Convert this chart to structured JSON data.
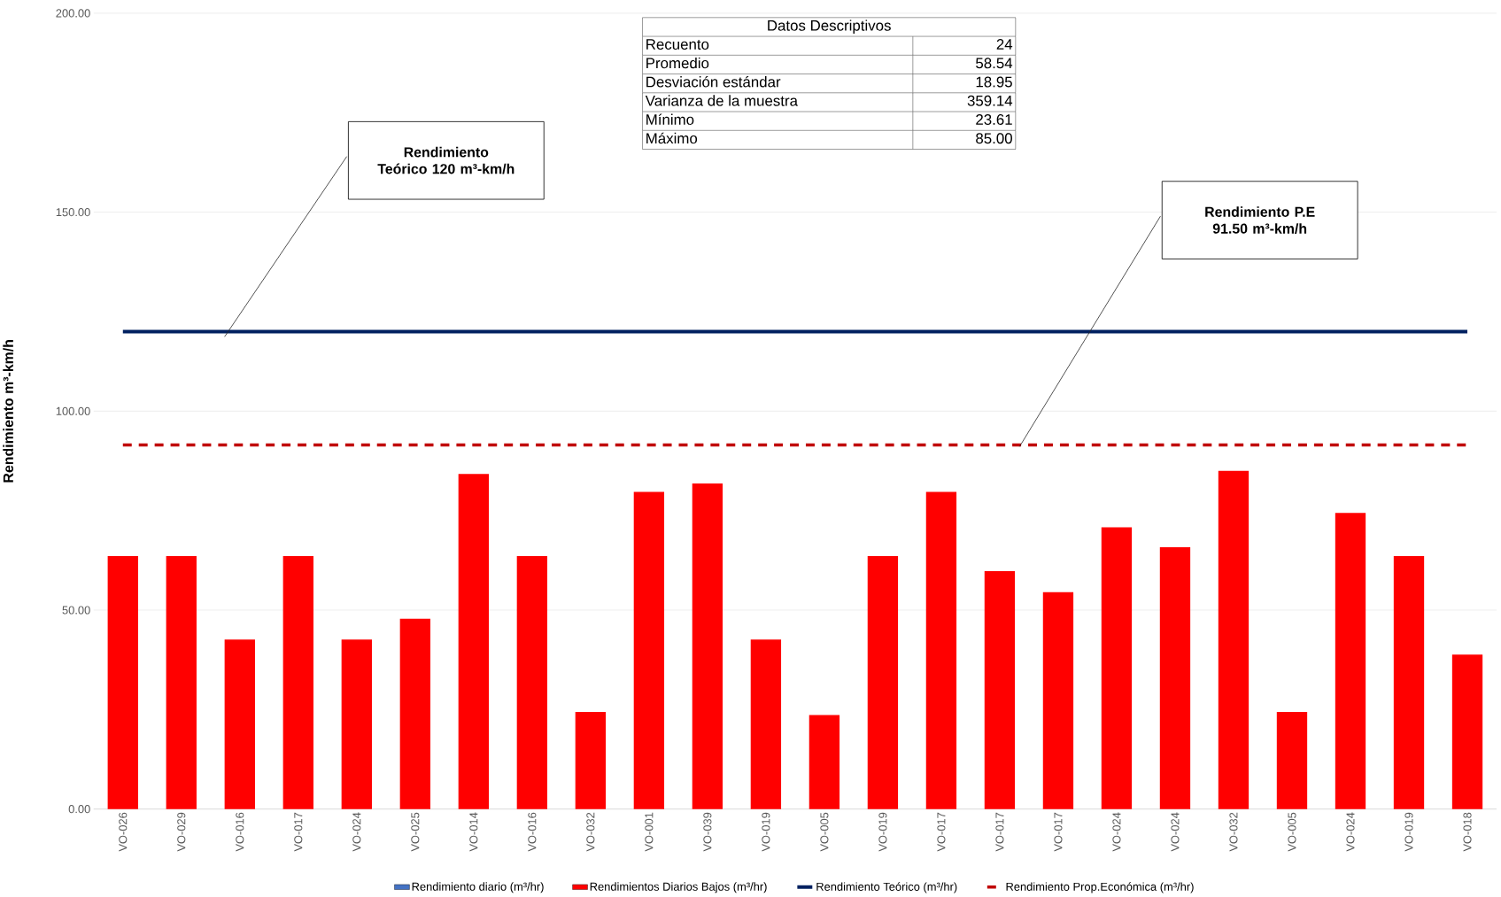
{
  "chart_data": {
    "type": "bar",
    "ylabel": "Rendimiento m³-km/h",
    "categories": [
      "VO-026",
      "VO-029",
      "VO-016",
      "VO-017",
      "VO-024",
      "VO-025",
      "VO-014",
      "VO-016",
      "VO-032",
      "VO-001",
      "VO-039",
      "VO-019",
      "VO-005",
      "VO-019",
      "VO-017",
      "VO-017",
      "VO-017",
      "VO-024",
      "VO-024",
      "VO-032",
      "VO-005",
      "VO-024",
      "VO-019",
      "VO-018"
    ],
    "series": [
      {
        "name": "Rendimiento diario (m³/hr)",
        "color": "#4472c4",
        "values": [
          null,
          null,
          null,
          null,
          null,
          null,
          null,
          null,
          null,
          null,
          null,
          null,
          null,
          null,
          null,
          null,
          null,
          null,
          null,
          null,
          null,
          null,
          null,
          null
        ]
      },
      {
        "name": "Rendimientos Diarios Bajos (m³/hr)",
        "color": "#ff0000",
        "values": [
          63.6,
          63.6,
          42.6,
          63.6,
          42.6,
          47.8,
          84.2,
          63.6,
          24.4,
          79.7,
          81.8,
          42.6,
          23.6,
          63.6,
          79.7,
          59.8,
          54.5,
          70.8,
          65.8,
          85.0,
          24.4,
          74.4,
          63.6,
          38.8
        ]
      },
      {
        "name": "Rendimiento Teórico (m³/hr)",
        "type": "line",
        "color": "#002060",
        "line_style": "solid",
        "values": [
          120,
          120,
          120,
          120,
          120,
          120,
          120,
          120,
          120,
          120,
          120,
          120,
          120,
          120,
          120,
          120,
          120,
          120,
          120,
          120,
          120,
          120,
          120,
          120
        ]
      },
      {
        "name": "Rendimiento Prop.Económica (m³/hr)",
        "type": "line",
        "color": "#c00000",
        "line_style": "dashed",
        "values": [
          91.5,
          91.5,
          91.5,
          91.5,
          91.5,
          91.5,
          91.5,
          91.5,
          91.5,
          91.5,
          91.5,
          91.5,
          91.5,
          91.5,
          91.5,
          91.5,
          91.5,
          91.5,
          91.5,
          91.5,
          91.5,
          91.5,
          91.5,
          91.5
        ]
      }
    ],
    "ylim": [
      0,
      200
    ],
    "yticks": [
      {
        "value": 0,
        "label": "0.00"
      },
      {
        "value": 50,
        "label": "50.00"
      },
      {
        "value": 100,
        "label": "100.00"
      },
      {
        "value": 150,
        "label": "150.00"
      },
      {
        "value": 200,
        "label": "200.00"
      }
    ],
    "grid": "y",
    "legend": "bottom",
    "annotations": [
      "**Rendimiento Teórico 120 m³-km/h**",
      "**Rendimiento P.E 91.50 m³-km/h**",
      "Datos Descriptivos",
      "Recuento",
      "24",
      "Promedio",
      "58.54",
      "Desviación estándar",
      "18.95",
      "Varianza de la muestra",
      "359.14",
      "Mínimo",
      "23.61",
      "Máximo",
      "85.00"
    ]
  }
}
